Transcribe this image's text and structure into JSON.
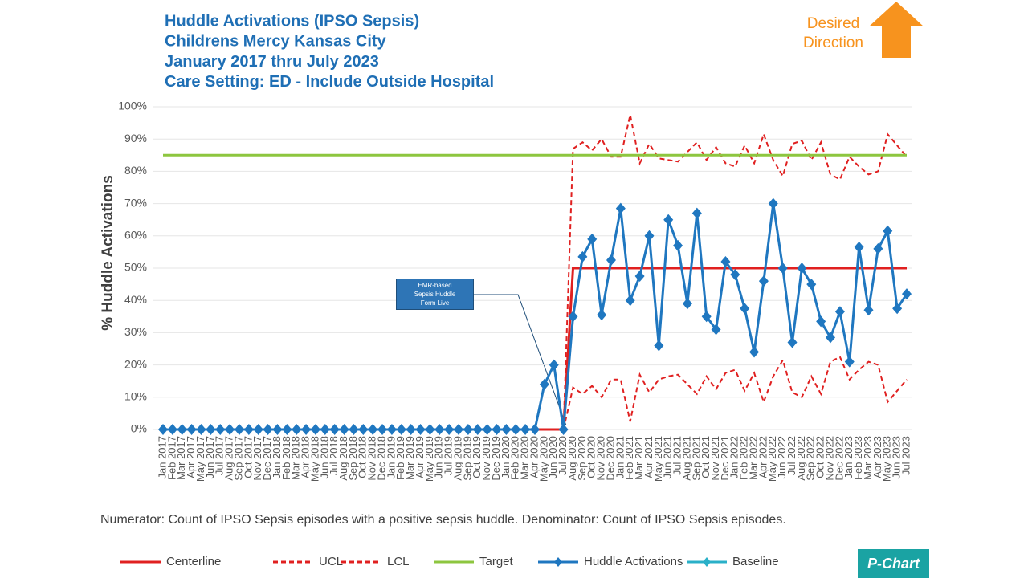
{
  "chart_data": {
    "type": "line",
    "title": [
      "Huddle Activations (IPSO Sepsis)",
      "Childrens Mercy Kansas City",
      "January 2017 thru July 2023",
      "Care Setting:  ED  - Include Outside Hospital"
    ],
    "y_label": "% Huddle Activations",
    "annotation": "EMR-based Sepsis Huddle Form Live",
    "desired_direction": "Desired Direction",
    "footnote": "Numerator:  Count of IPSO Sepsis episodes with a positive sepsis huddle. Denominator:  Count of IPSO Sepsis episodes.",
    "badge": "P-Chart",
    "categories": [
      "Jan 2017",
      "Feb 2017",
      "Mar 2017",
      "Apr 2017",
      "May 2017",
      "Jun 2017",
      "Jul 2017",
      "Aug 2017",
      "Sep 2017",
      "Oct 2017",
      "Nov 2017",
      "Dec 2017",
      "Jan 2018",
      "Feb 2018",
      "Mar 2018",
      "Apr 2018",
      "May 2018",
      "Jun 2018",
      "Jul 2018",
      "Aug 2018",
      "Sep 2018",
      "Oct 2018",
      "Nov 2018",
      "Dec 2018",
      "Jan 2019",
      "Feb 2019",
      "Mar 2019",
      "Apr 2019",
      "May 2019",
      "Jun 2019",
      "Jul 2019",
      "Aug 2019",
      "Sep 2019",
      "Oct 2019",
      "Nov 2019",
      "Dec 2019",
      "Jan 2020",
      "Feb 2020",
      "Mar 2020",
      "Apr 2020",
      "May 2020",
      "Jun 2020",
      "Jul 2020",
      "Aug 2020",
      "Sep 2020",
      "Oct 2020",
      "Nov 2020",
      "Dec 2020",
      "Jan 2021",
      "Feb 2021",
      "Mar 2021",
      "Apr 2021",
      "May 2021",
      "Jun 2021",
      "Jul 2021",
      "Aug 2021",
      "Sep 2021",
      "Oct 2021",
      "Nov 2021",
      "Dec 2021",
      "Jan 2022",
      "Feb 2022",
      "Mar 2022",
      "Apr 2022",
      "May 2022",
      "Jun 2022",
      "Jul 2022",
      "Aug 2022",
      "Sep 2022",
      "Oct 2022",
      "Nov 2022",
      "Dec 2022",
      "Jan 2023",
      "Feb 2023",
      "Mar 2023",
      "Apr 2023",
      "May 2023",
      "Jun 2023",
      "Jul 2023"
    ],
    "ylim": [
      0,
      100
    ],
    "yticks": [
      {
        "value": 0,
        "label": "0%"
      },
      {
        "value": 10,
        "label": "10%"
      },
      {
        "value": 20,
        "label": "20%"
      },
      {
        "value": 30,
        "label": "30%"
      },
      {
        "value": 40,
        "label": "40%"
      },
      {
        "value": 50,
        "label": "50%"
      },
      {
        "value": 60,
        "label": "60%"
      },
      {
        "value": 70,
        "label": "70%"
      },
      {
        "value": 80,
        "label": "80%"
      },
      {
        "value": 90,
        "label": "90%"
      },
      {
        "value": 100,
        "label": "100%"
      }
    ],
    "grid": true,
    "series": [
      {
        "name": "Centerline",
        "color": "#e02020",
        "dash": false,
        "marker": false,
        "values": [
          0,
          0,
          0,
          0,
          0,
          0,
          0,
          0,
          0,
          0,
          0,
          0,
          0,
          0,
          0,
          0,
          0,
          0,
          0,
          0,
          0,
          0,
          0,
          0,
          0,
          0,
          0,
          0,
          0,
          0,
          0,
          0,
          0,
          0,
          0,
          0,
          0,
          0,
          0,
          0,
          0,
          0,
          0,
          50,
          50,
          50,
          50,
          50,
          50,
          50,
          50,
          50,
          50,
          50,
          50,
          50,
          50,
          50,
          50,
          50,
          50,
          50,
          50,
          50,
          50,
          50,
          50,
          50,
          50,
          50,
          50,
          50,
          50,
          50,
          50,
          50,
          50,
          50,
          50
        ]
      },
      {
        "name": "UCL",
        "color": "#e02020",
        "dash": true,
        "marker": false,
        "values": [
          null,
          null,
          null,
          null,
          null,
          null,
          null,
          null,
          null,
          null,
          null,
          null,
          null,
          null,
          null,
          null,
          null,
          null,
          null,
          null,
          null,
          null,
          null,
          null,
          null,
          null,
          null,
          null,
          null,
          null,
          null,
          null,
          null,
          null,
          null,
          null,
          null,
          null,
          null,
          null,
          null,
          null,
          0,
          87,
          89,
          86.5,
          90,
          84.5,
          84.5,
          97.5,
          82.5,
          88.5,
          84,
          83.5,
          83,
          86,
          89,
          83.5,
          87.5,
          82.5,
          81.5,
          88,
          82.5,
          91.5,
          83.5,
          78.5,
          88.5,
          89.5,
          83.5,
          89,
          79,
          77.5,
          84.5,
          81.5,
          79,
          80,
          91.5,
          88,
          84.5
        ]
      },
      {
        "name": "LCL",
        "color": "#e02020",
        "dash": true,
        "marker": false,
        "values": [
          null,
          null,
          null,
          null,
          null,
          null,
          null,
          null,
          null,
          null,
          null,
          null,
          null,
          null,
          null,
          null,
          null,
          null,
          null,
          null,
          null,
          null,
          null,
          null,
          null,
          null,
          null,
          null,
          null,
          null,
          null,
          null,
          null,
          null,
          null,
          null,
          null,
          null,
          null,
          null,
          null,
          null,
          0,
          13,
          11,
          13.5,
          10,
          15.5,
          15.5,
          2.5,
          17,
          11.5,
          15.5,
          16.5,
          17,
          14,
          11,
          16.5,
          12.5,
          17.5,
          18.5,
          12,
          17.5,
          8.5,
          16.5,
          21.5,
          11.5,
          10,
          16.5,
          11,
          21,
          22.5,
          15.5,
          18.5,
          21,
          20,
          8.5,
          12,
          15.5
        ]
      },
      {
        "name": "Target",
        "color": "#8dc63f",
        "dash": false,
        "marker": false,
        "values": [
          85,
          85,
          85,
          85,
          85,
          85,
          85,
          85,
          85,
          85,
          85,
          85,
          85,
          85,
          85,
          85,
          85,
          85,
          85,
          85,
          85,
          85,
          85,
          85,
          85,
          85,
          85,
          85,
          85,
          85,
          85,
          85,
          85,
          85,
          85,
          85,
          85,
          85,
          85,
          85,
          85,
          85,
          85,
          85,
          85,
          85,
          85,
          85,
          85,
          85,
          85,
          85,
          85,
          85,
          85,
          85,
          85,
          85,
          85,
          85,
          85,
          85,
          85,
          85,
          85,
          85,
          85,
          85,
          85,
          85,
          85,
          85,
          85,
          85,
          85,
          85,
          85,
          85,
          85
        ]
      },
      {
        "name": "Huddle Activations",
        "color": "#1f77c0",
        "dash": false,
        "marker": true,
        "values": [
          0,
          0,
          0,
          0,
          0,
          0,
          0,
          0,
          0,
          0,
          0,
          0,
          0,
          0,
          0,
          0,
          0,
          0,
          0,
          0,
          0,
          0,
          0,
          0,
          0,
          0,
          0,
          0,
          0,
          0,
          0,
          0,
          0,
          0,
          0,
          0,
          0,
          0,
          0,
          0,
          14,
          20,
          0,
          35,
          53.5,
          59,
          35.5,
          52.5,
          68.5,
          40,
          47.5,
          60,
          26,
          65,
          57,
          39,
          67,
          35,
          31,
          52,
          48,
          37.5,
          24,
          46,
          70,
          50,
          27,
          50,
          45,
          33.5,
          28.5,
          36.5,
          21,
          56.5,
          37,
          56,
          61.5,
          37.5,
          42
        ]
      },
      {
        "name": "Baseline",
        "color": "#2ab0c8",
        "dash": false,
        "marker": true,
        "values": [
          null,
          null,
          null,
          null,
          null,
          null,
          null,
          null,
          null,
          null,
          null,
          null,
          null,
          null,
          null,
          null,
          null,
          null,
          null,
          null,
          null,
          null,
          null,
          null,
          null,
          null,
          null,
          null,
          null,
          null,
          null,
          null,
          null,
          null,
          null,
          null,
          null,
          null,
          null,
          null,
          null,
          null,
          null,
          null,
          null,
          null,
          null,
          null,
          null,
          null,
          null,
          null,
          null,
          null,
          null,
          null,
          null,
          null,
          null,
          null,
          null,
          null,
          null,
          null,
          null,
          null,
          null,
          null,
          null,
          null,
          null,
          null,
          null,
          null,
          null,
          null,
          null,
          null,
          null
        ]
      }
    ]
  }
}
